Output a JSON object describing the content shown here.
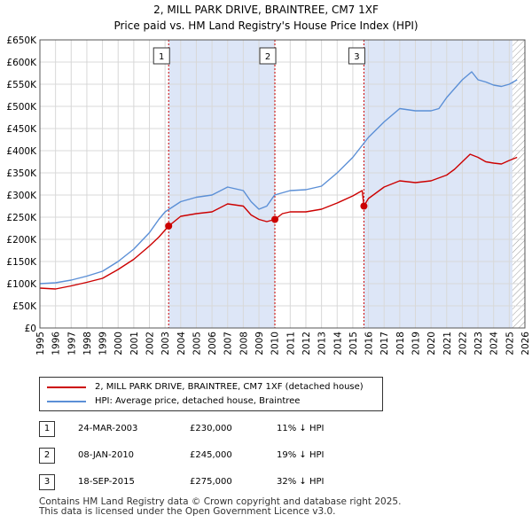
{
  "chart_data": {
    "type": "line",
    "title": "2, MILL PARK DRIVE, BRAINTREE, CM7 1XF",
    "subtitle": "Price paid vs. HM Land Registry's House Price Index (HPI)",
    "xlim": [
      1995,
      2026
    ],
    "ylim": [
      0,
      650000
    ],
    "y_ticks": [
      0,
      50000,
      100000,
      150000,
      200000,
      250000,
      300000,
      350000,
      400000,
      450000,
      500000,
      550000,
      600000,
      650000
    ],
    "y_tick_labels": [
      "£0",
      "£50K",
      "£100K",
      "£150K",
      "£200K",
      "£250K",
      "£300K",
      "£350K",
      "£400K",
      "£450K",
      "£500K",
      "£550K",
      "£600K",
      "£650K"
    ],
    "x_ticks": [
      1995,
      1996,
      1997,
      1998,
      1999,
      2000,
      2001,
      2002,
      2003,
      2004,
      2005,
      2006,
      2007,
      2008,
      2009,
      2010,
      2011,
      2012,
      2013,
      2014,
      2015,
      2016,
      2017,
      2018,
      2019,
      2020,
      2021,
      2022,
      2023,
      2024,
      2025,
      2026
    ],
    "x_tick_labels": [
      "1995",
      "1996",
      "1997",
      "1998",
      "1999",
      "2000",
      "2001",
      "2002",
      "2003",
      "2004",
      "2005",
      "2006",
      "2007",
      "2008",
      "2009",
      "2010",
      "2011",
      "2012",
      "2013",
      "2014",
      "2015",
      "2016",
      "2017",
      "2018",
      "2019",
      "2020",
      "2021",
      "2022",
      "2023",
      "2024",
      "2025",
      "2026"
    ],
    "shaded_spans": [
      [
        2003.23,
        2010.02
      ],
      [
        2015.71,
        2025.2
      ]
    ],
    "hatched_from": 2025.2,
    "markers": [
      {
        "label": "1",
        "x": 2003.23
      },
      {
        "label": "2",
        "x": 2010.02
      },
      {
        "label": "3",
        "x": 2015.71
      }
    ],
    "sale_points": [
      {
        "x": 2003.23,
        "y": 230000
      },
      {
        "x": 2010.02,
        "y": 245000
      },
      {
        "x": 2015.71,
        "y": 275000
      }
    ],
    "series": [
      {
        "name": "2, MILL PARK DRIVE, BRAINTREE, CM7 1XF (detached house)",
        "color": "#cc0000",
        "x": [
          1995,
          1996,
          1997,
          1998,
          1999,
          2000,
          2001,
          2002,
          2002.6,
          2003.23,
          2004,
          2005,
          2006,
          2007,
          2008,
          2008.5,
          2009,
          2009.5,
          2010.02,
          2010.5,
          2011,
          2012,
          2013,
          2014,
          2015,
          2015.6,
          2015.71,
          2016,
          2017,
          2018,
          2019,
          2020,
          2021,
          2021.5,
          2022,
          2022.5,
          2023,
          2023.5,
          2024,
          2024.5,
          2025,
          2025.5
        ],
        "y": [
          90000,
          88000,
          95000,
          103000,
          112000,
          132000,
          155000,
          185000,
          205000,
          230000,
          252000,
          258000,
          262000,
          280000,
          275000,
          255000,
          245000,
          240000,
          245000,
          258000,
          262000,
          262000,
          268000,
          282000,
          298000,
          310000,
          275000,
          292000,
          318000,
          332000,
          328000,
          332000,
          345000,
          358000,
          375000,
          392000,
          385000,
          375000,
          372000,
          370000,
          378000,
          385000
        ]
      },
      {
        "name": "HPI: Average price, detached house, Braintree",
        "color": "#5b8fd6",
        "x": [
          1995,
          1996,
          1997,
          1998,
          1999,
          2000,
          2001,
          2002,
          2002.6,
          2003,
          2004,
          2005,
          2006,
          2007,
          2008,
          2008.5,
          2009,
          2009.5,
          2010,
          2011,
          2012,
          2013,
          2014,
          2015,
          2016,
          2017,
          2018,
          2019,
          2020,
          2020.5,
          2021,
          2022,
          2022.6,
          2023,
          2023.5,
          2024,
          2024.5,
          2025,
          2025.5
        ],
        "y": [
          100000,
          102000,
          108000,
          117000,
          128000,
          150000,
          178000,
          215000,
          245000,
          262000,
          285000,
          295000,
          300000,
          318000,
          310000,
          285000,
          268000,
          275000,
          300000,
          310000,
          312000,
          320000,
          350000,
          385000,
          430000,
          465000,
          495000,
          490000,
          490000,
          495000,
          520000,
          560000,
          578000,
          560000,
          555000,
          548000,
          545000,
          550000,
          560000
        ]
      }
    ],
    "legend": {
      "placement": "bottom",
      "entries": [
        "2, MILL PARK DRIVE, BRAINTREE, CM7 1XF (detached house)",
        "HPI: Average price, detached house, Braintree"
      ]
    }
  },
  "sales": [
    {
      "num": "1",
      "date": "24-MAR-2003",
      "price": "£230,000",
      "hpi": "11% ↓ HPI"
    },
    {
      "num": "2",
      "date": "08-JAN-2010",
      "price": "£245,000",
      "hpi": "19% ↓ HPI"
    },
    {
      "num": "3",
      "date": "18-SEP-2015",
      "price": "£275,000",
      "hpi": "32% ↓ HPI"
    }
  ],
  "footer": {
    "line1": "Contains HM Land Registry data © Crown copyright and database right 2025.",
    "line2": "This data is licensed under the Open Government Licence v3.0."
  },
  "colors": {
    "property": "#cc0000",
    "hpi": "#5b8fd6",
    "shade": "#dde6f7",
    "grid": "#d8d8d8",
    "marker_line": "#cc0000"
  }
}
